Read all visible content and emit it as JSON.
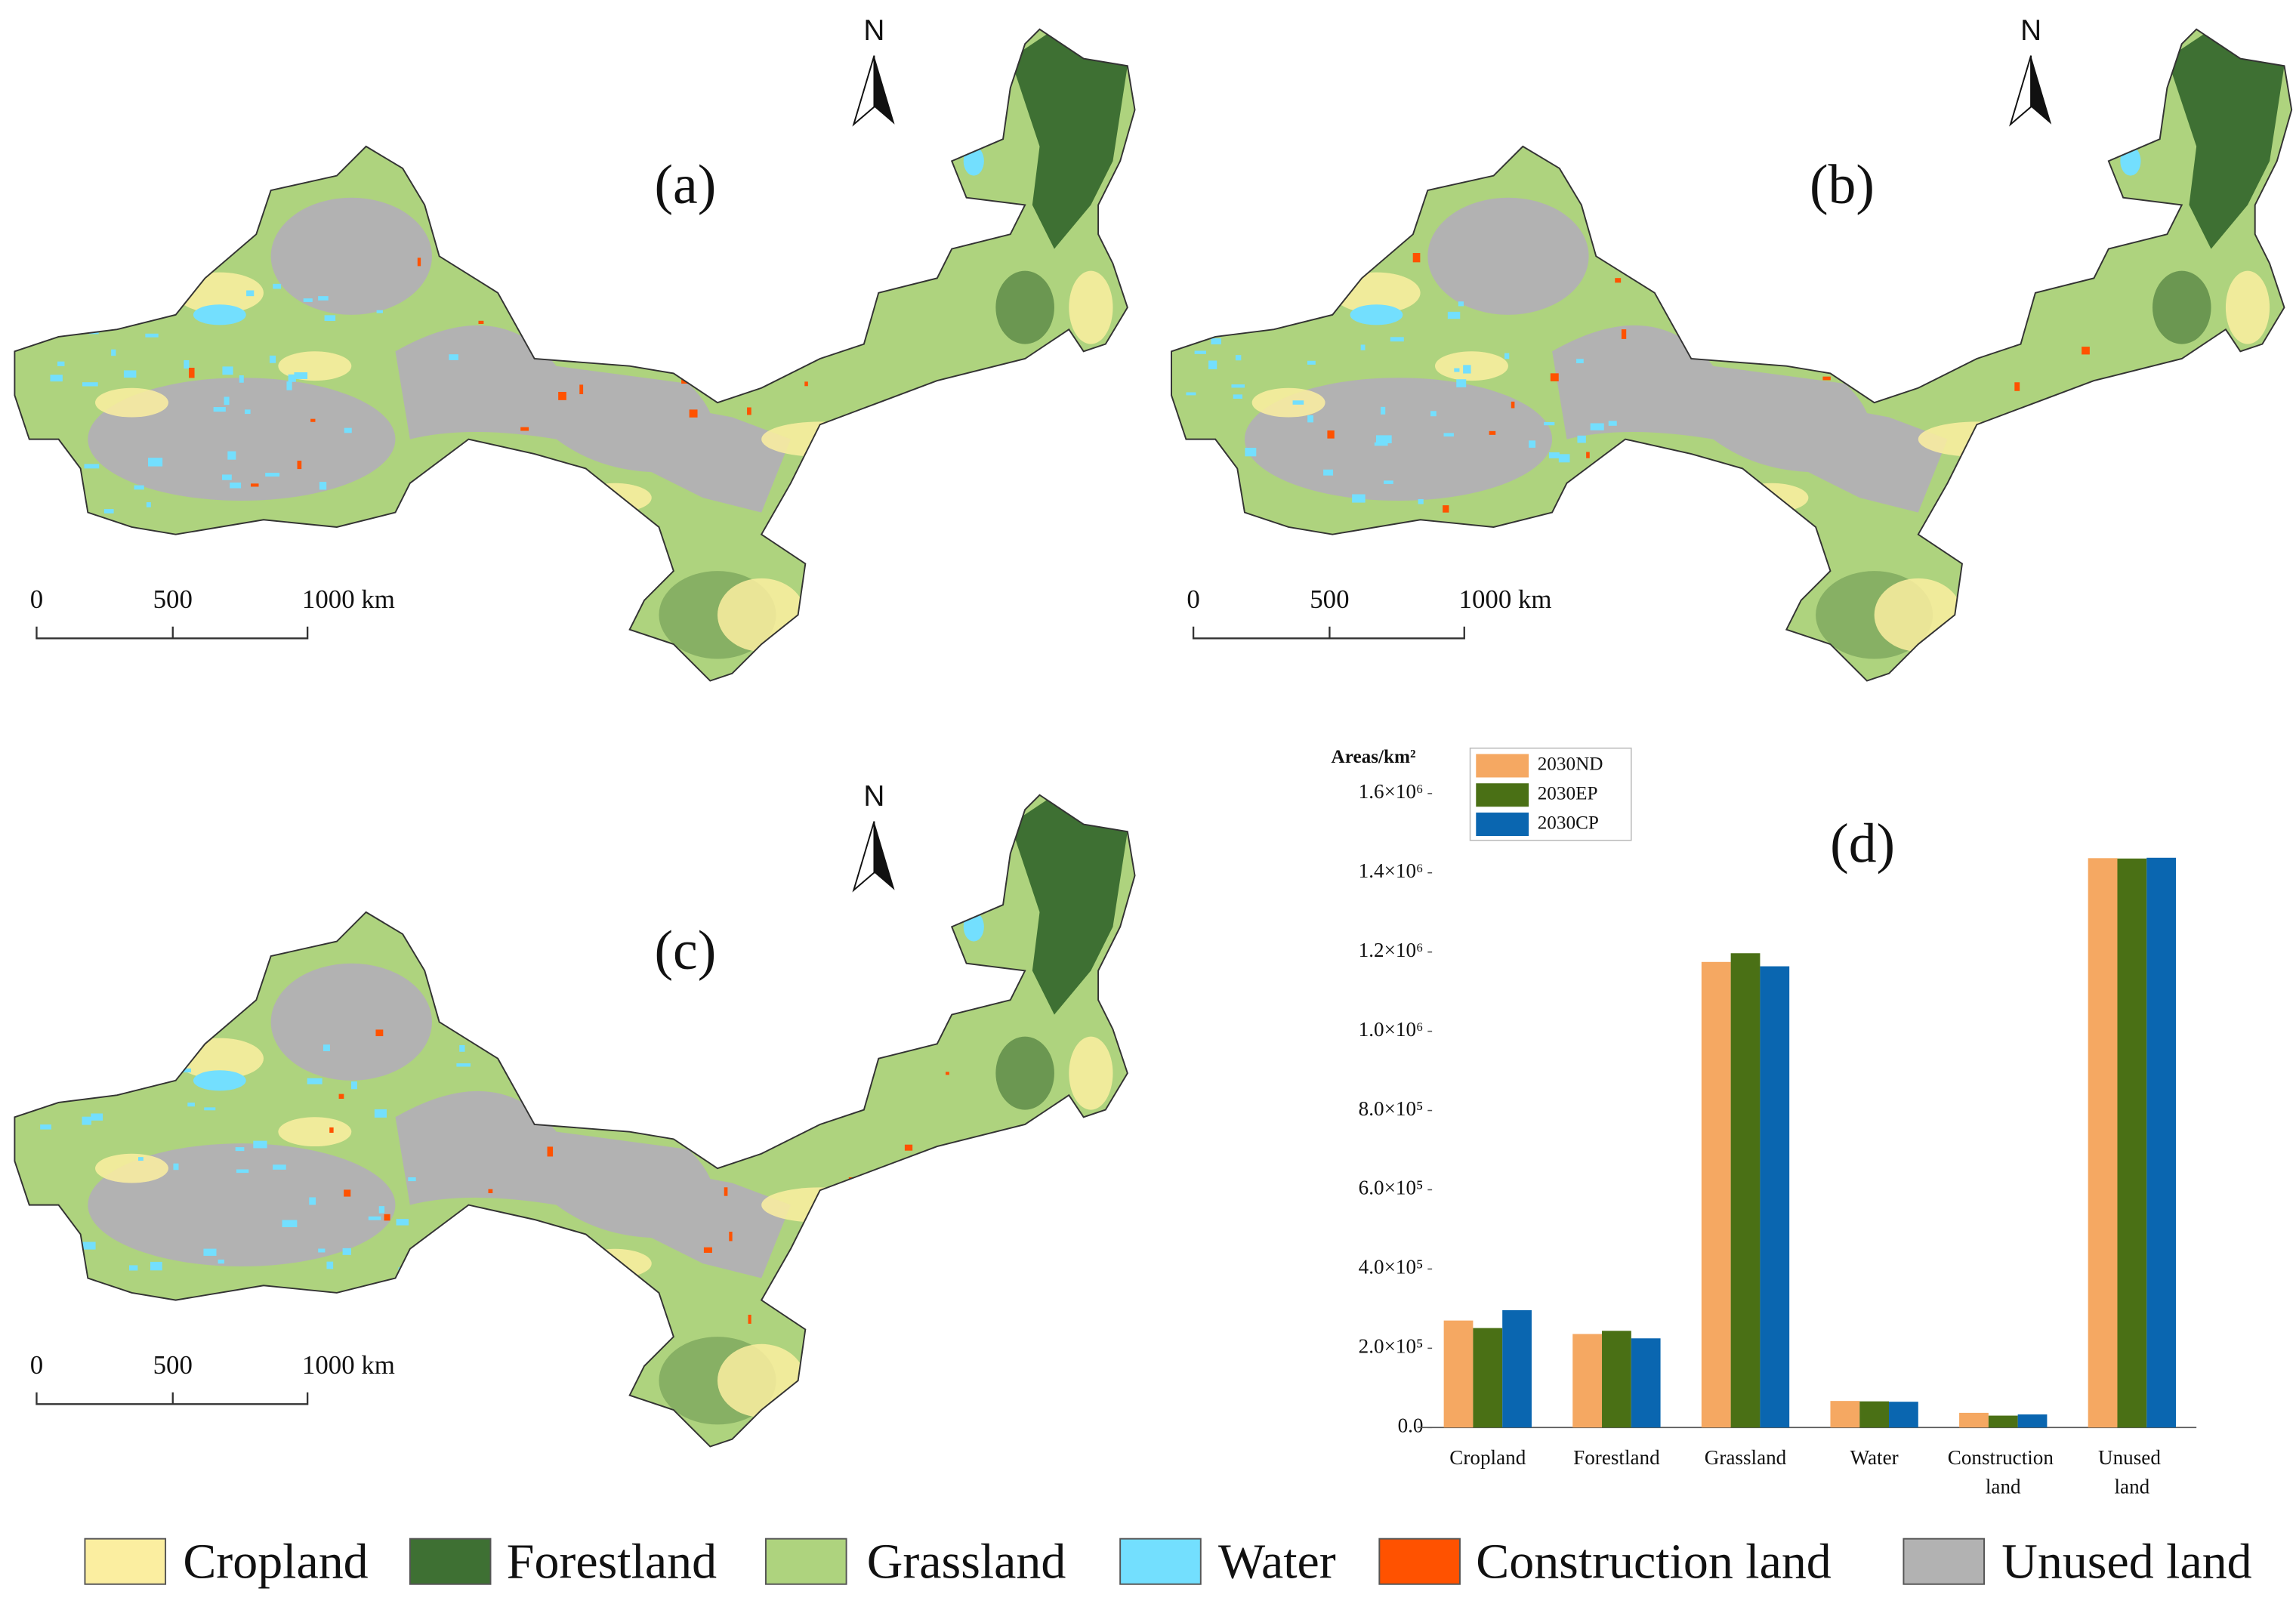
{
  "maps": [
    {
      "label": "(a)",
      "north": "N",
      "scale_labels": [
        "0",
        "500",
        "1000 km"
      ]
    },
    {
      "label": "(b)",
      "north": "N",
      "scale_labels": [
        "0",
        "500",
        "1000 km"
      ]
    },
    {
      "label": "(c)",
      "north": "N",
      "scale_labels": [
        "0",
        "500",
        "1000 km"
      ]
    }
  ],
  "land_cover_legend": [
    {
      "name": "Cropland",
      "color": "#fbeea0"
    },
    {
      "name": "Forestland",
      "color": "#3e7033"
    },
    {
      "name": "Grassland",
      "color": "#aed37e"
    },
    {
      "name": "Water",
      "color": "#73dffe"
    },
    {
      "name": "Construction land",
      "color": "#ff5200"
    },
    {
      "name": "Unused land",
      "color": "#b2b2b2"
    }
  ],
  "chart_data": {
    "type": "bar",
    "label": "(d)",
    "y_label": "Areas/km²",
    "categories": [
      "Cropland",
      "Forestland",
      "Grassland",
      "Water",
      "Construction land",
      "Unused land"
    ],
    "series": [
      {
        "name": "2030ND",
        "color": "#f5a862",
        "values": [
          270000,
          236000,
          1175000,
          67000,
          37000,
          1437000
        ]
      },
      {
        "name": "2030EP",
        "color": "#4a7015",
        "values": [
          251000,
          244000,
          1197000,
          66000,
          30000,
          1436000
        ]
      },
      {
        "name": "2030CP",
        "color": "#0a66b0",
        "values": [
          296000,
          225000,
          1164000,
          65000,
          33000,
          1438000
        ]
      }
    ],
    "ylim": [
      0,
      1600000
    ],
    "yticks": [
      {
        "value": 0,
        "label": "0.0"
      },
      {
        "value": 200000,
        "label": "2.0×10⁵"
      },
      {
        "value": 400000,
        "label": "4.0×10⁵"
      },
      {
        "value": 600000,
        "label": "6.0×10⁵"
      },
      {
        "value": 800000,
        "label": "8.0×10⁵"
      },
      {
        "value": 1000000,
        "label": "1.0×10⁶"
      },
      {
        "value": 1200000,
        "label": "1.2×10⁶"
      },
      {
        "value": 1400000,
        "label": "1.4×10⁶"
      },
      {
        "value": 1600000,
        "label": "1.6×10⁶"
      }
    ]
  }
}
